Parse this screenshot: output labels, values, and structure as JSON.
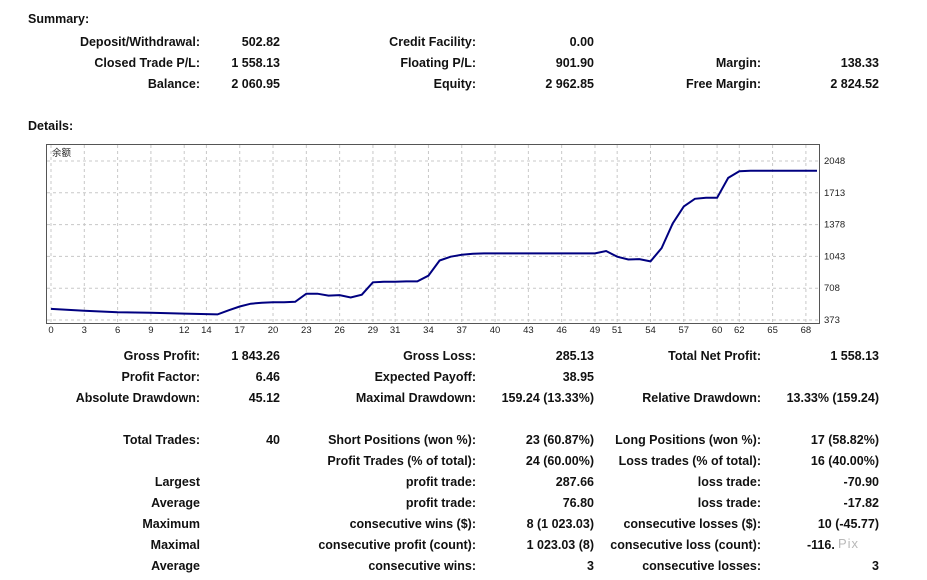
{
  "summary": {
    "title": "Summary:",
    "deposit_withdrawal": {
      "label": "Deposit/Withdrawal:",
      "value": "502.82"
    },
    "credit_facility": {
      "label": "Credit Facility:",
      "value": "0.00"
    },
    "closed_trade_pl": {
      "label": "Closed Trade P/L:",
      "value": "1 558.13"
    },
    "floating_pl": {
      "label": "Floating P/L:",
      "value": "901.90"
    },
    "margin": {
      "label": "Margin:",
      "value": "138.33"
    },
    "balance": {
      "label": "Balance:",
      "value": "2 060.95"
    },
    "equity": {
      "label": "Equity:",
      "value": "2 962.85"
    },
    "free_margin": {
      "label": "Free Margin:",
      "value": "2 824.52"
    }
  },
  "details": {
    "title": "Details:"
  },
  "chart_data": {
    "type": "line",
    "title": "余额",
    "xlabel": "",
    "ylabel": "",
    "x_ticks": [
      "0",
      "3",
      "6",
      "9",
      "12",
      "14",
      "17",
      "20",
      "23",
      "26",
      "29",
      "31",
      "34",
      "37",
      "40",
      "43",
      "46",
      "49",
      "51",
      "54",
      "57",
      "60",
      "62",
      "65",
      "68"
    ],
    "y_ticks": [
      "373",
      "708",
      "1043",
      "1378",
      "1713",
      "2048"
    ],
    "ylim": [
      373,
      2048
    ],
    "xlim": [
      0,
      69
    ],
    "grid": true,
    "series": [
      {
        "color": "#000080",
        "x": [
          0,
          3,
          6,
          9,
          12,
          14,
          15,
          16,
          17,
          18,
          19,
          20,
          21,
          22,
          23,
          24,
          25,
          26,
          27,
          28,
          29,
          30,
          31,
          32,
          33,
          34,
          35,
          36,
          37,
          38,
          39,
          40,
          42,
          44,
          46,
          48,
          49,
          50,
          51,
          52,
          53,
          54,
          55,
          56,
          57,
          58,
          59,
          60,
          61,
          62,
          63,
          65,
          68,
          69
        ],
        "y": [
          490,
          470,
          455,
          450,
          440,
          435,
          432,
          475,
          515,
          545,
          555,
          560,
          560,
          565,
          650,
          650,
          630,
          635,
          610,
          640,
          770,
          775,
          775,
          780,
          780,
          840,
          1000,
          1040,
          1060,
          1070,
          1075,
          1075,
          1075,
          1075,
          1075,
          1075,
          1075,
          1100,
          1040,
          1010,
          1015,
          990,
          1130,
          1390,
          1570,
          1650,
          1660,
          1660,
          1870,
          1940,
          1945,
          1945,
          1945,
          1945
        ]
      }
    ]
  },
  "stats": {
    "gross_profit": {
      "label": "Gross Profit:",
      "value": "1 843.26"
    },
    "gross_loss": {
      "label": "Gross Loss:",
      "value": "285.13"
    },
    "total_net_profit": {
      "label": "Total Net Profit:",
      "value": "1 558.13"
    },
    "profit_factor": {
      "label": "Profit Factor:",
      "value": "6.46"
    },
    "expected_payoff": {
      "label": "Expected Payoff:",
      "value": "38.95"
    },
    "absolute_drawdown": {
      "label": "Absolute Drawdown:",
      "value": "45.12"
    },
    "maximal_drawdown": {
      "label": "Maximal Drawdown:",
      "value": "159.24 (13.33%)"
    },
    "relative_drawdown": {
      "label": "Relative Drawdown:",
      "value": "13.33% (159.24)"
    },
    "total_trades": {
      "label": "Total Trades:",
      "value": "40"
    },
    "short_positions": {
      "label": "Short Positions (won %):",
      "value": "23 (60.87%)"
    },
    "long_positions": {
      "label": "Long Positions (won %):",
      "value": "17 (58.82%)"
    },
    "profit_trades": {
      "label": "Profit Trades (% of total):",
      "value": "24 (60.00%)"
    },
    "loss_trades": {
      "label": "Loss trades (% of total):",
      "value": "16 (40.00%)"
    },
    "largest": {
      "label": "Largest",
      "profit_label": "profit trade:",
      "profit_value": "287.66",
      "loss_label": "loss trade:",
      "loss_value": "-70.90"
    },
    "average": {
      "label": "Average",
      "profit_label": "profit trade:",
      "profit_value": "76.80",
      "loss_label": "loss trade:",
      "loss_value": "-17.82"
    },
    "maximum": {
      "label": "Maximum",
      "wins_label": "consecutive wins ($):",
      "wins_value": "8 (1 023.03)",
      "losses_label": "consecutive losses ($):",
      "losses_value": "10 (-45.77)"
    },
    "maximal": {
      "label": "Maximal",
      "profit_label": "consecutive profit (count):",
      "profit_value": "1 023.03 (8)",
      "loss_label": "consecutive loss (count):",
      "loss_value": "-116."
    },
    "average_consec": {
      "label": "Average",
      "wins_label": "consecutive wins:",
      "wins_value": "3",
      "losses_label": "consecutive losses:",
      "losses_value": "3"
    }
  },
  "watermark": "Pix"
}
